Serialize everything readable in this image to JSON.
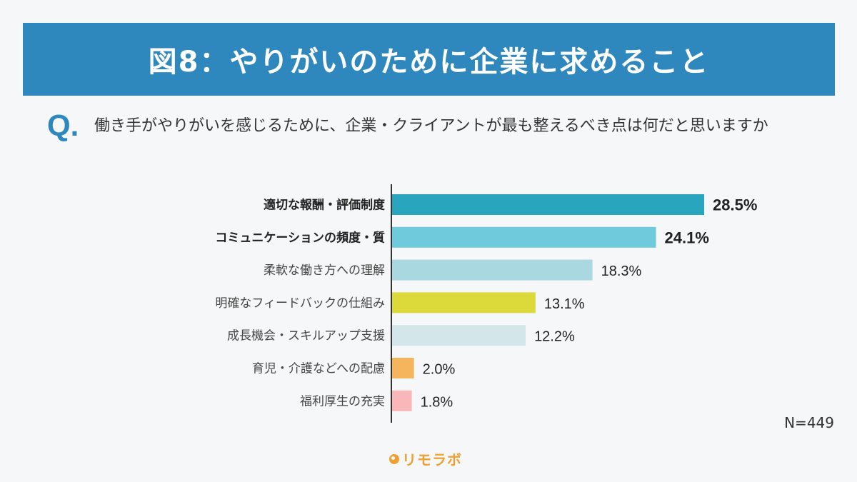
{
  "header": {
    "title": "図8：やりがいのために企業に求めること"
  },
  "question": {
    "mark": "Q.",
    "text": "働き手がやりがいを感じるために、企業・クライアントが最も整えるべき点は何だと思いますか"
  },
  "chart_data": {
    "type": "bar",
    "orientation": "horizontal",
    "unit": "%",
    "categories": [
      "適切な報酬・評価制度",
      "コミュニケーションの頻度・質",
      "柔軟な働き方への理解",
      "明確なフィードバックの仕組み",
      "成長機会・スキルアップ支援",
      "育児・介護などへの配慮",
      "福利厚生の充実"
    ],
    "values": [
      28.5,
      24.1,
      18.3,
      13.1,
      12.2,
      2.0,
      1.8
    ],
    "value_labels": [
      "28.5%",
      "24.1%",
      "18.3%",
      "13.1%",
      "12.2%",
      "2.0%",
      "1.8%"
    ],
    "colors": [
      "#29a6bd",
      "#6fcadb",
      "#a9d8e0",
      "#dcd93a",
      "#d3e6ea",
      "#f5b55c",
      "#f9b7b9"
    ],
    "emphasized": [
      true,
      true,
      false,
      false,
      false,
      false,
      false
    ],
    "xlim": [
      0,
      30
    ],
    "grid": false
  },
  "footer": {
    "sample_size": "N=449",
    "brand": "リモラボ",
    "brand_color": "#f0a030"
  }
}
